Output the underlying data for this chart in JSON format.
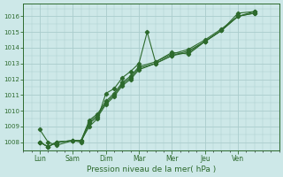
{
  "title": "Pression niveau de la mer( hPa )",
  "background_color": "#cde8e8",
  "grid_color": "#aacccc",
  "line_color": "#2d6a2d",
  "ylim": [
    1007.5,
    1016.8
  ],
  "yticks": [
    1008,
    1009,
    1010,
    1011,
    1012,
    1013,
    1014,
    1015,
    1016
  ],
  "x_labels": [
    "Lun",
    "Sam",
    "Dim",
    "Mar",
    "Mer",
    "Jeu",
    "Ven"
  ],
  "x_tick_positions": [
    0,
    1,
    2,
    3,
    4,
    5,
    6
  ],
  "xlim": [
    -0.15,
    6.85
  ],
  "series": [
    {
      "x": [
        0.0,
        0.25,
        0.5,
        1.0,
        1.25,
        1.5,
        1.75,
        2.0,
        2.25,
        2.5,
        2.75,
        3.0,
        3.25,
        3.5,
        4.0,
        4.5,
        5.0,
        5.5,
        6.0,
        6.5
      ],
      "y": [
        1008.8,
        1008.0,
        1007.8,
        1008.1,
        1008.1,
        1009.0,
        1009.5,
        1011.1,
        1011.4,
        1012.1,
        1012.5,
        1013.0,
        1015.0,
        1013.1,
        1013.7,
        1013.6,
        1014.4,
        1015.1,
        1016.2,
        1016.3
      ]
    },
    {
      "x": [
        0.0,
        0.25,
        0.5,
        1.0,
        1.25,
        1.5,
        1.75,
        2.0,
        2.25,
        2.5,
        2.75,
        3.0,
        3.5,
        4.0,
        4.5,
        5.0,
        5.5,
        6.0,
        6.5
      ],
      "y": [
        1008.0,
        1007.7,
        1008.0,
        1008.1,
        1008.1,
        1009.4,
        1009.8,
        1010.6,
        1011.1,
        1011.8,
        1012.2,
        1012.8,
        1013.1,
        1013.6,
        1013.9,
        1014.5,
        1015.2,
        1016.0,
        1016.2
      ]
    },
    {
      "x": [
        0.0,
        0.25,
        0.5,
        1.0,
        1.25,
        1.5,
        1.75,
        2.0,
        2.25,
        2.5,
        2.75,
        3.0,
        3.5,
        4.0,
        4.5,
        5.0,
        5.5,
        6.0,
        6.5
      ],
      "y": [
        1008.0,
        1007.7,
        1008.0,
        1008.1,
        1008.1,
        1009.3,
        1009.7,
        1010.5,
        1011.0,
        1011.7,
        1012.1,
        1012.7,
        1013.0,
        1013.5,
        1013.8,
        1014.4,
        1015.1,
        1016.0,
        1016.3
      ]
    },
    {
      "x": [
        0.0,
        0.25,
        0.5,
        1.0,
        1.25,
        1.5,
        1.75,
        2.0,
        2.25,
        2.5,
        2.75,
        3.0,
        3.5,
        4.0,
        4.5,
        5.0,
        5.5,
        6.0,
        6.5
      ],
      "y": [
        1008.0,
        1007.7,
        1008.0,
        1008.1,
        1008.0,
        1009.2,
        1009.6,
        1010.4,
        1010.9,
        1011.6,
        1012.0,
        1012.6,
        1013.0,
        1013.5,
        1013.7,
        1014.4,
        1015.1,
        1016.0,
        1016.2
      ]
    }
  ]
}
